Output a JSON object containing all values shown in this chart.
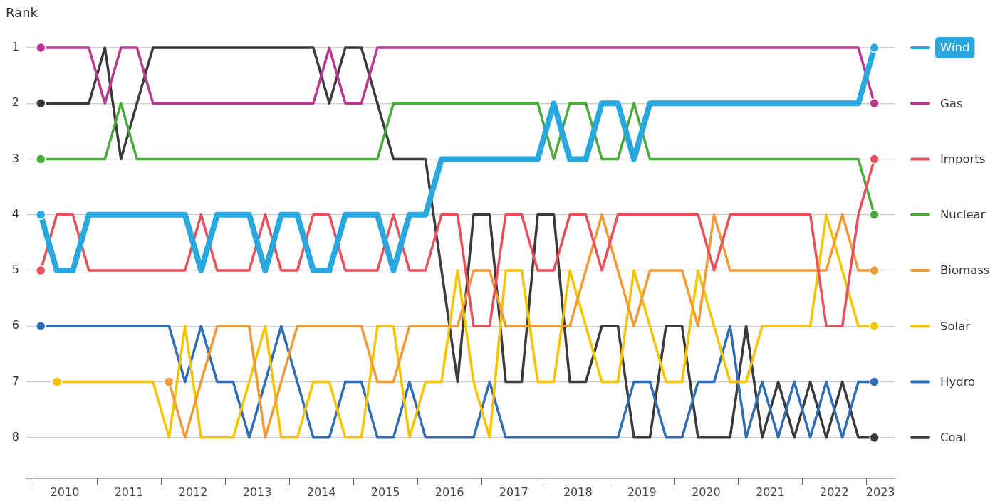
{
  "chart_data": {
    "type": "line",
    "ylabel": "Rank",
    "grid": "y",
    "legend": "right",
    "line_style": "solid",
    "x": [
      2010.125,
      2010.375,
      2010.625,
      2010.875,
      2011.125,
      2011.375,
      2011.625,
      2011.875,
      2012.125,
      2012.375,
      2012.625,
      2012.875,
      2013.125,
      2013.375,
      2013.625,
      2013.875,
      2014.125,
      2014.375,
      2014.625,
      2014.875,
      2015.125,
      2015.375,
      2015.625,
      2015.875,
      2016.125,
      2016.375,
      2016.625,
      2016.875,
      2017.125,
      2017.375,
      2017.625,
      2017.875,
      2018.125,
      2018.375,
      2018.625,
      2018.875,
      2019.125,
      2019.375,
      2019.625,
      2019.875,
      2020.125,
      2020.375,
      2020.625,
      2020.875,
      2021.125,
      2021.375,
      2021.625,
      2021.875,
      2022.125,
      2022.375,
      2022.625,
      2022.875,
      2023.125
    ],
    "xlim": [
      2009.9,
      2023.44
    ],
    "xticks": [
      {
        "value": 2010,
        "label": null
      },
      {
        "value": 2010.5,
        "label": "2010"
      },
      {
        "value": 2011,
        "label": null
      },
      {
        "value": 2011.5,
        "label": "2011"
      },
      {
        "value": 2012,
        "label": null
      },
      {
        "value": 2012.5,
        "label": "2012"
      },
      {
        "value": 2013,
        "label": null
      },
      {
        "value": 2013.5,
        "label": "2013"
      },
      {
        "value": 2014,
        "label": null
      },
      {
        "value": 2014.5,
        "label": "2014"
      },
      {
        "value": 2015,
        "label": null
      },
      {
        "value": 2015.5,
        "label": "2015"
      },
      {
        "value": 2016,
        "label": null
      },
      {
        "value": 2016.5,
        "label": "2016"
      },
      {
        "value": 2017,
        "label": null
      },
      {
        "value": 2017.5,
        "label": "2017"
      },
      {
        "value": 2018,
        "label": null
      },
      {
        "value": 2018.5,
        "label": "2018"
      },
      {
        "value": 2019,
        "label": null
      },
      {
        "value": 2019.5,
        "label": "2019"
      },
      {
        "value": 2020,
        "label": null
      },
      {
        "value": 2020.5,
        "label": "2020"
      },
      {
        "value": 2021,
        "label": null
      },
      {
        "value": 2021.5,
        "label": "2021"
      },
      {
        "value": 2022,
        "label": null
      },
      {
        "value": 2022.5,
        "label": "2022"
      },
      {
        "value": 2023,
        "label": null
      },
      {
        "value": 2023.22,
        "label": "2023"
      }
    ],
    "ylim": [
      8.73,
      1
    ],
    "yticks": [
      1,
      2,
      3,
      4,
      5,
      6,
      7,
      8
    ],
    "series": [
      {
        "name": "Wind",
        "color": "#29a8e0",
        "values": [
          4,
          5,
          5,
          4,
          4,
          4,
          4,
          4,
          4,
          4,
          5,
          4,
          4,
          4,
          5,
          4,
          4,
          5,
          5,
          4,
          4,
          4,
          5,
          4,
          4,
          3,
          3,
          3,
          3,
          3,
          3,
          3,
          2,
          3,
          3,
          2,
          2,
          3,
          2,
          2,
          2,
          2,
          2,
          2,
          2,
          2,
          2,
          2,
          2,
          2,
          2,
          2,
          1
        ]
      },
      {
        "name": "Gas",
        "color": "#b8398f",
        "values": [
          1,
          1,
          1,
          1,
          2,
          1,
          1,
          2,
          2,
          2,
          2,
          2,
          2,
          2,
          2,
          2,
          2,
          2,
          1,
          2,
          2,
          1,
          1,
          1,
          1,
          1,
          1,
          1,
          1,
          1,
          1,
          1,
          1,
          1,
          1,
          1,
          1,
          1,
          1,
          1,
          1,
          1,
          1,
          1,
          1,
          1,
          1,
          1,
          1,
          1,
          1,
          1,
          2
        ]
      },
      {
        "name": "Imports",
        "color": "#e8505b",
        "values": [
          5,
          4,
          4,
          5,
          5,
          5,
          5,
          5,
          5,
          5,
          4,
          5,
          5,
          5,
          4,
          5,
          5,
          4,
          4,
          5,
          5,
          5,
          4,
          5,
          5,
          4,
          4,
          6,
          6,
          4,
          4,
          5,
          5,
          4,
          4,
          5,
          4,
          4,
          4,
          4,
          4,
          4,
          5,
          4,
          4,
          4,
          4,
          4,
          4,
          6,
          6,
          4,
          3
        ]
      },
      {
        "name": "Nuclear",
        "color": "#4aab3b",
        "values": [
          3,
          3,
          3,
          3,
          3,
          2,
          3,
          3,
          3,
          3,
          3,
          3,
          3,
          3,
          3,
          3,
          3,
          3,
          3,
          3,
          3,
          3,
          2,
          2,
          2,
          2,
          2,
          2,
          2,
          2,
          2,
          2,
          3,
          2,
          2,
          3,
          3,
          2,
          3,
          3,
          3,
          3,
          3,
          3,
          3,
          3,
          3,
          3,
          3,
          3,
          3,
          3,
          4
        ]
      },
      {
        "name": "Biomass",
        "color": "#f09a38",
        "values": [
          null,
          null,
          null,
          null,
          null,
          null,
          null,
          null,
          7,
          8,
          7,
          6,
          6,
          6,
          8,
          7,
          6,
          6,
          6,
          6,
          6,
          7,
          7,
          6,
          6,
          6,
          6,
          5,
          5,
          6,
          6,
          6,
          6,
          6,
          5,
          4,
          5,
          6,
          5,
          5,
          5,
          6,
          4,
          5,
          5,
          5,
          5,
          5,
          5,
          5,
          4,
          5,
          5
        ]
      },
      {
        "name": "Solar",
        "color": "#f5c400",
        "values": [
          null,
          7,
          7,
          7,
          7,
          7,
          7,
          7,
          8,
          6,
          8,
          8,
          8,
          7,
          6,
          8,
          8,
          7,
          7,
          8,
          8,
          6,
          6,
          8,
          7,
          7,
          5,
          7,
          8,
          5,
          5,
          7,
          7,
          5,
          6,
          7,
          7,
          5,
          6,
          7,
          7,
          5,
          6,
          7,
          7,
          6,
          6,
          6,
          6,
          4,
          5,
          6,
          6
        ]
      },
      {
        "name": "Hydro",
        "color": "#2f6db5",
        "values": [
          6,
          6,
          6,
          6,
          6,
          6,
          6,
          6,
          6,
          7,
          6,
          7,
          7,
          8,
          7,
          6,
          7,
          8,
          8,
          7,
          7,
          8,
          8,
          7,
          8,
          8,
          8,
          8,
          7,
          8,
          8,
          8,
          8,
          8,
          8,
          8,
          8,
          7,
          7,
          8,
          8,
          7,
          7,
          6,
          8,
          7,
          8,
          7,
          8,
          7,
          8,
          7,
          7
        ]
      },
      {
        "name": "Coal",
        "color": "#3a3a3a",
        "values": [
          2,
          2,
          2,
          2,
          1,
          3,
          2,
          1,
          1,
          1,
          1,
          1,
          1,
          1,
          1,
          1,
          1,
          1,
          2,
          1,
          1,
          2,
          3,
          3,
          3,
          5,
          7,
          4,
          4,
          7,
          7,
          4,
          4,
          7,
          7,
          6,
          6,
          8,
          8,
          6,
          6,
          8,
          8,
          8,
          6,
          8,
          7,
          8,
          7,
          8,
          7,
          8,
          8
        ]
      }
    ]
  }
}
